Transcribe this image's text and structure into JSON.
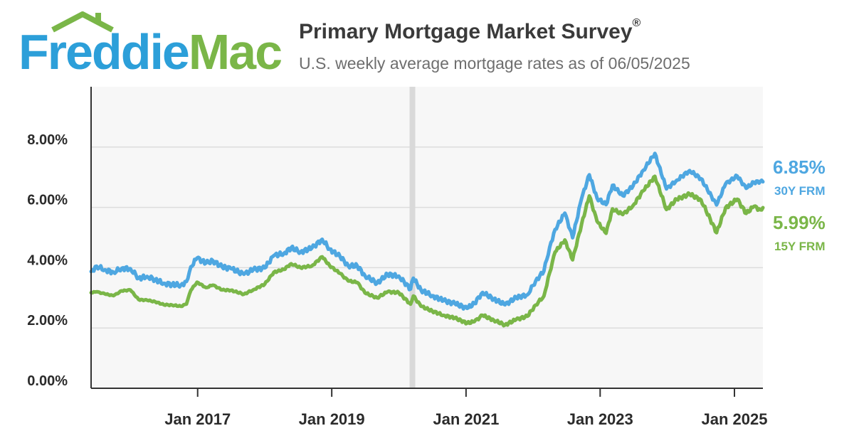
{
  "brand": {
    "name_part1": "Freddie",
    "name_part2": "Mac",
    "color_blue": "#2c9fd9",
    "color_green": "#7ab648"
  },
  "header": {
    "title": "Primary Mortgage Market Survey",
    "title_mark": "®",
    "subtitle": "U.S. weekly average mortgage rates as of 06/05/2025"
  },
  "chart_data": {
    "type": "line",
    "title": "Primary Mortgage Market Survey®",
    "subtitle": "U.S. weekly average mortgage rates as of 06/05/2025",
    "xlabel": "",
    "ylabel": "",
    "xlim": [
      "2015-06-01",
      "2025-06-05"
    ],
    "ylim": [
      0,
      10
    ],
    "y_ticks": [
      0,
      2,
      4,
      6,
      8
    ],
    "y_tick_labels": [
      "0.00%",
      "2.00%",
      "4.00%",
      "6.00%",
      "8.00%"
    ],
    "x_ticks": [
      "2017-01-01",
      "2019-01-01",
      "2021-01-01",
      "2023-01-01",
      "2025-01-01"
    ],
    "x_tick_labels": [
      "Jan 2017",
      "Jan 2019",
      "Jan 2021",
      "Jan 2023",
      "Jan 2025"
    ],
    "grid": true,
    "highlight_band": {
      "date": "2020-03-15"
    },
    "series": [
      {
        "name": "30Y FRM",
        "end_label": "6.85%",
        "color": "#4ea7e1",
        "points": [
          [
            "2015-06-01",
            3.87
          ],
          [
            "2015-07-01",
            4.05
          ],
          [
            "2015-08-15",
            3.93
          ],
          [
            "2015-10-01",
            3.85
          ],
          [
            "2015-11-15",
            3.98
          ],
          [
            "2016-01-01",
            3.97
          ],
          [
            "2016-02-15",
            3.65
          ],
          [
            "2016-04-01",
            3.71
          ],
          [
            "2016-05-15",
            3.6
          ],
          [
            "2016-07-01",
            3.48
          ],
          [
            "2016-08-15",
            3.44
          ],
          [
            "2016-10-01",
            3.42
          ],
          [
            "2016-11-01",
            3.54
          ],
          [
            "2016-11-25",
            4.03
          ],
          [
            "2016-12-29",
            4.32
          ],
          [
            "2017-02-15",
            4.15
          ],
          [
            "2017-03-25",
            4.23
          ],
          [
            "2017-05-15",
            4.02
          ],
          [
            "2017-07-01",
            3.97
          ],
          [
            "2017-09-10",
            3.78
          ],
          [
            "2017-11-01",
            3.94
          ],
          [
            "2018-01-01",
            3.99
          ],
          [
            "2018-02-20",
            4.4
          ],
          [
            "2018-04-15",
            4.47
          ],
          [
            "2018-05-25",
            4.66
          ],
          [
            "2018-07-15",
            4.52
          ],
          [
            "2018-09-15",
            4.65
          ],
          [
            "2018-11-10",
            4.94
          ],
          [
            "2018-12-20",
            4.62
          ],
          [
            "2019-02-15",
            4.37
          ],
          [
            "2019-04-01",
            4.06
          ],
          [
            "2019-05-20",
            4.06
          ],
          [
            "2019-07-01",
            3.73
          ],
          [
            "2019-09-05",
            3.49
          ],
          [
            "2019-11-01",
            3.78
          ],
          [
            "2020-01-01",
            3.72
          ],
          [
            "2020-03-05",
            3.29
          ],
          [
            "2020-03-20",
            3.65
          ],
          [
            "2020-05-01",
            3.26
          ],
          [
            "2020-07-01",
            3.07
          ],
          [
            "2020-09-01",
            2.91
          ],
          [
            "2020-11-01",
            2.81
          ],
          [
            "2021-01-07",
            2.65
          ],
          [
            "2021-02-15",
            2.81
          ],
          [
            "2021-04-01",
            3.18
          ],
          [
            "2021-06-01",
            2.96
          ],
          [
            "2021-08-01",
            2.77
          ],
          [
            "2021-10-01",
            3.01
          ],
          [
            "2021-12-01",
            3.1
          ],
          [
            "2022-01-15",
            3.56
          ],
          [
            "2022-03-01",
            3.89
          ],
          [
            "2022-04-01",
            4.67
          ],
          [
            "2022-05-01",
            5.27
          ],
          [
            "2022-06-23",
            5.81
          ],
          [
            "2022-08-04",
            4.99
          ],
          [
            "2022-09-22",
            6.29
          ],
          [
            "2022-11-03",
            7.08
          ],
          [
            "2022-12-15",
            6.31
          ],
          [
            "2023-02-02",
            6.09
          ],
          [
            "2023-03-09",
            6.73
          ],
          [
            "2023-05-04",
            6.39
          ],
          [
            "2023-06-29",
            6.71
          ],
          [
            "2023-08-24",
            7.23
          ],
          [
            "2023-10-26",
            7.79
          ],
          [
            "2023-12-28",
            6.61
          ],
          [
            "2024-02-22",
            6.9
          ],
          [
            "2024-05-02",
            7.22
          ],
          [
            "2024-07-03",
            6.95
          ],
          [
            "2024-09-26",
            6.08
          ],
          [
            "2024-11-14",
            6.78
          ],
          [
            "2025-01-16",
            7.04
          ],
          [
            "2025-03-06",
            6.63
          ],
          [
            "2025-04-17",
            6.83
          ],
          [
            "2025-05-22",
            6.86
          ],
          [
            "2025-06-05",
            6.85
          ]
        ]
      },
      {
        "name": "15Y FRM",
        "end_label": "5.99%",
        "color": "#7ab648",
        "points": [
          [
            "2015-06-01",
            3.17
          ],
          [
            "2015-07-01",
            3.2
          ],
          [
            "2015-08-15",
            3.13
          ],
          [
            "2015-10-01",
            3.07
          ],
          [
            "2015-11-15",
            3.23
          ],
          [
            "2016-01-01",
            3.26
          ],
          [
            "2016-02-15",
            2.94
          ],
          [
            "2016-04-01",
            2.92
          ],
          [
            "2016-05-15",
            2.87
          ],
          [
            "2016-07-01",
            2.77
          ],
          [
            "2016-08-15",
            2.76
          ],
          [
            "2016-10-01",
            2.72
          ],
          [
            "2016-11-01",
            2.79
          ],
          [
            "2016-11-25",
            3.25
          ],
          [
            "2016-12-29",
            3.52
          ],
          [
            "2017-02-15",
            3.34
          ],
          [
            "2017-03-25",
            3.42
          ],
          [
            "2017-05-15",
            3.26
          ],
          [
            "2017-07-01",
            3.25
          ],
          [
            "2017-09-10",
            3.12
          ],
          [
            "2017-11-01",
            3.27
          ],
          [
            "2018-01-01",
            3.45
          ],
          [
            "2018-02-20",
            3.85
          ],
          [
            "2018-04-15",
            3.94
          ],
          [
            "2018-05-25",
            4.13
          ],
          [
            "2018-07-15",
            4.0
          ],
          [
            "2018-09-15",
            4.06
          ],
          [
            "2018-11-10",
            4.36
          ],
          [
            "2018-12-20",
            4.07
          ],
          [
            "2019-02-15",
            3.81
          ],
          [
            "2019-04-01",
            3.56
          ],
          [
            "2019-05-20",
            3.51
          ],
          [
            "2019-07-01",
            3.16
          ],
          [
            "2019-09-05",
            3.0
          ],
          [
            "2019-11-01",
            3.2
          ],
          [
            "2020-01-01",
            3.17
          ],
          [
            "2020-03-05",
            2.79
          ],
          [
            "2020-03-20",
            3.06
          ],
          [
            "2020-05-01",
            2.72
          ],
          [
            "2020-07-01",
            2.56
          ],
          [
            "2020-09-01",
            2.42
          ],
          [
            "2020-11-01",
            2.33
          ],
          [
            "2021-01-07",
            2.16
          ],
          [
            "2021-02-15",
            2.21
          ],
          [
            "2021-04-01",
            2.42
          ],
          [
            "2021-06-01",
            2.26
          ],
          [
            "2021-08-01",
            2.1
          ],
          [
            "2021-10-01",
            2.28
          ],
          [
            "2021-12-01",
            2.39
          ],
          [
            "2022-01-15",
            2.76
          ],
          [
            "2022-03-01",
            3.06
          ],
          [
            "2022-04-01",
            3.83
          ],
          [
            "2022-05-01",
            4.52
          ],
          [
            "2022-06-23",
            4.92
          ],
          [
            "2022-08-04",
            4.26
          ],
          [
            "2022-09-22",
            5.44
          ],
          [
            "2022-11-03",
            6.38
          ],
          [
            "2022-12-15",
            5.54
          ],
          [
            "2023-02-02",
            5.14
          ],
          [
            "2023-03-09",
            5.95
          ],
          [
            "2023-05-04",
            5.76
          ],
          [
            "2023-06-29",
            6.06
          ],
          [
            "2023-08-24",
            6.55
          ],
          [
            "2023-10-26",
            7.03
          ],
          [
            "2023-12-28",
            5.93
          ],
          [
            "2024-02-22",
            6.27
          ],
          [
            "2024-05-02",
            6.44
          ],
          [
            "2024-07-03",
            6.25
          ],
          [
            "2024-09-26",
            5.16
          ],
          [
            "2024-11-14",
            5.99
          ],
          [
            "2025-01-16",
            6.27
          ],
          [
            "2025-03-06",
            5.8
          ],
          [
            "2025-04-17",
            6.03
          ],
          [
            "2025-05-22",
            5.92
          ],
          [
            "2025-06-05",
            5.99
          ]
        ]
      }
    ]
  }
}
